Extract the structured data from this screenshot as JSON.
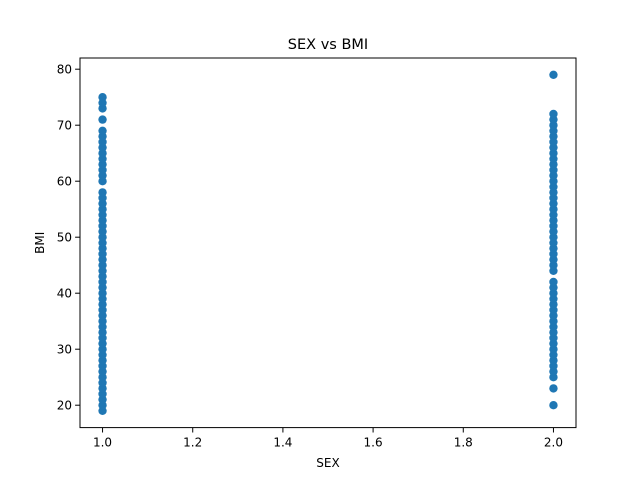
{
  "chart_data": {
    "type": "scatter",
    "title": "SEX vs BMI",
    "xlabel": "SEX",
    "ylabel": "BMI",
    "xlim": [
      0.95,
      2.05
    ],
    "ylim": [
      16,
      82
    ],
    "xticks": [
      1.0,
      1.2,
      1.4,
      1.6,
      1.8,
      2.0
    ],
    "xtick_labels": [
      "1.0",
      "1.2",
      "1.4",
      "1.6",
      "1.8",
      "2.0"
    ],
    "yticks": [
      20,
      30,
      40,
      50,
      60,
      70,
      80
    ],
    "ytick_labels": [
      "20",
      "30",
      "40",
      "50",
      "60",
      "70",
      "80"
    ],
    "grid": false,
    "marker_color": "#1f77b4",
    "series": [
      {
        "x": 1.0,
        "y": [
          19,
          20,
          21,
          22,
          23,
          24,
          25,
          26,
          27,
          28,
          29,
          30,
          31,
          32,
          33,
          34,
          35,
          36,
          37,
          38,
          39,
          40,
          41,
          42,
          43,
          44,
          45,
          46,
          47,
          48,
          49,
          50,
          51,
          52,
          53,
          54,
          55,
          56,
          57,
          58,
          60,
          61,
          62,
          63,
          64,
          65,
          66,
          67,
          68,
          69,
          71,
          73,
          74,
          75
        ]
      },
      {
        "x": 2.0,
        "y": [
          20,
          23,
          25,
          26,
          27,
          28,
          29,
          30,
          31,
          32,
          33,
          34,
          35,
          36,
          37,
          38,
          39,
          40,
          41,
          42,
          44,
          45,
          46,
          47,
          48,
          49,
          50,
          51,
          52,
          53,
          54,
          55,
          56,
          57,
          58,
          59,
          60,
          61,
          62,
          63,
          64,
          65,
          66,
          67,
          68,
          69,
          70,
          71,
          72,
          79
        ]
      }
    ]
  }
}
